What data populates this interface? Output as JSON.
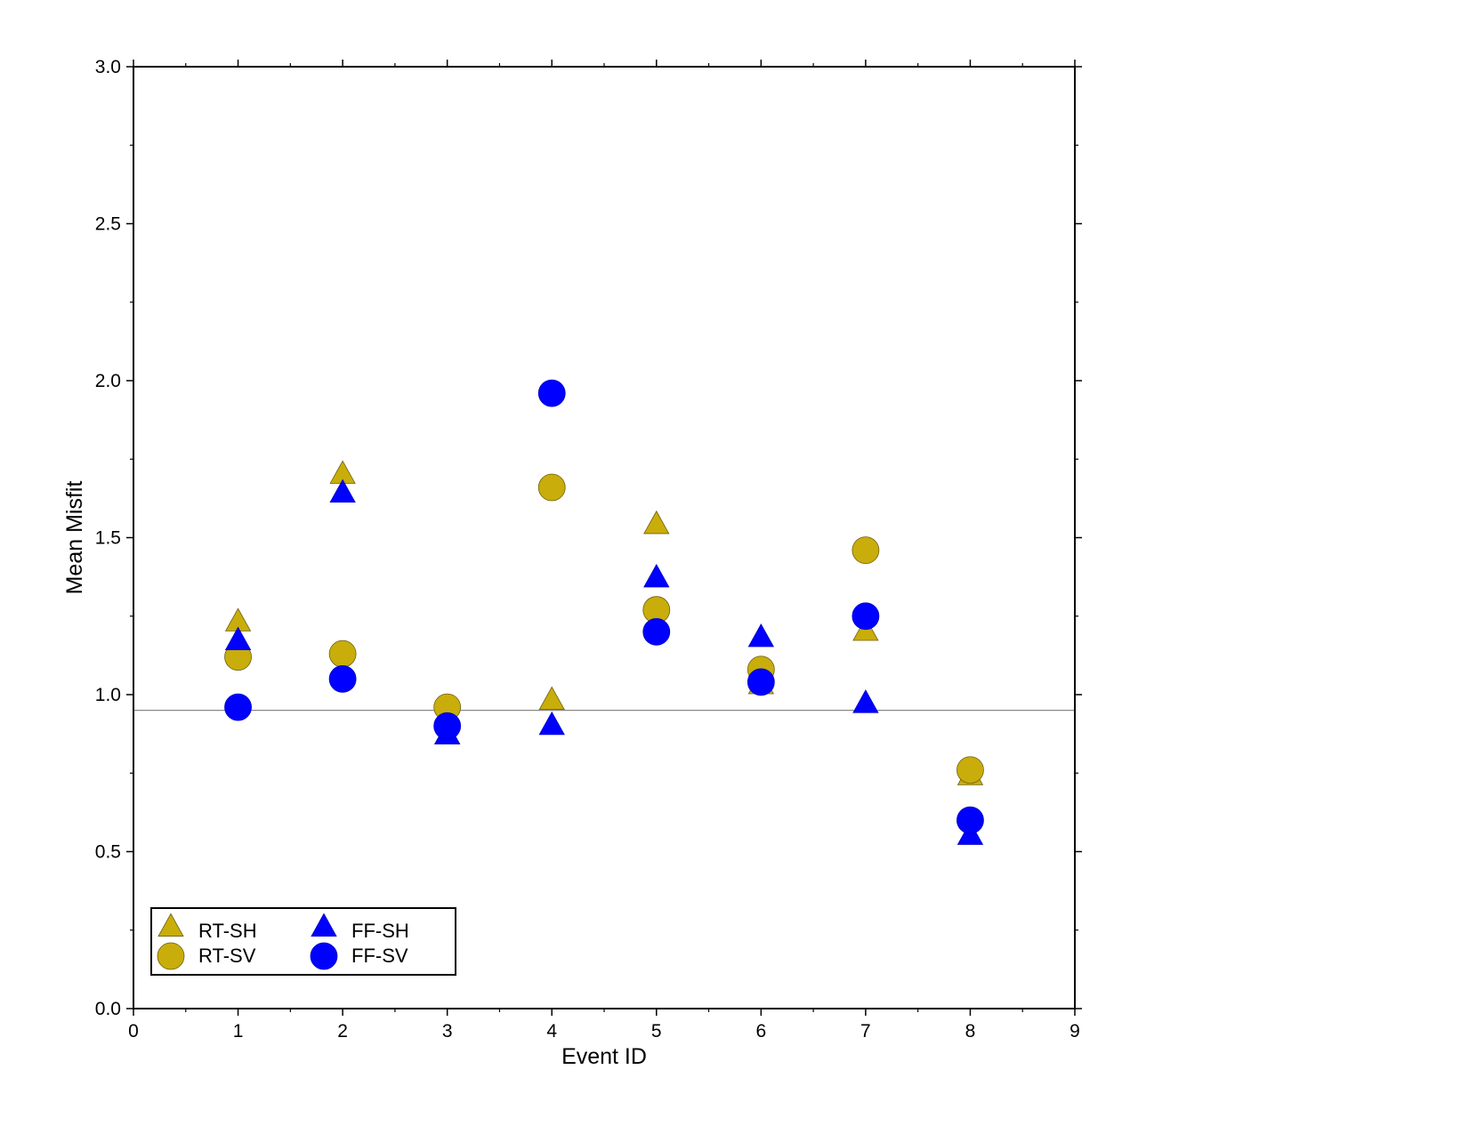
{
  "chart_data": {
    "type": "scatter",
    "xlabel": "Event ID",
    "ylabel": "Mean Misfit",
    "xlim": [
      0,
      9
    ],
    "ylim": [
      0,
      3
    ],
    "xticks": [
      0,
      1,
      2,
      3,
      4,
      5,
      6,
      7,
      8,
      9
    ],
    "yticks": [
      0.0,
      0.5,
      1.0,
      1.5,
      2.0,
      2.5,
      3.0
    ],
    "xtick_labels": [
      "0",
      "1",
      "2",
      "3",
      "4",
      "5",
      "6",
      "7",
      "8",
      "9"
    ],
    "ytick_labels": [
      "0.0",
      "0.5",
      "1.0",
      "1.5",
      "2.0",
      "2.5",
      "3.0"
    ],
    "reference_line_y": 0.95,
    "grid": false,
    "legend_position": "bottom-left",
    "x": [
      1,
      2,
      3,
      4,
      5,
      6,
      7,
      8
    ],
    "series": [
      {
        "name": "RT-SH",
        "marker": "triangle",
        "color": "#c9ad0a",
        "values": [
          1.23,
          1.7,
          0.87,
          0.98,
          1.54,
          1.03,
          1.2,
          0.74
        ]
      },
      {
        "name": "RT-SV",
        "marker": "circle",
        "color": "#c9ad0a",
        "values": [
          1.12,
          1.13,
          0.96,
          1.66,
          1.27,
          1.08,
          1.46,
          0.76
        ]
      },
      {
        "name": "FF-SH",
        "marker": "triangle",
        "color": "#0000ff",
        "values": [
          1.17,
          1.64,
          0.87,
          0.9,
          1.37,
          1.18,
          0.97,
          0.55
        ]
      },
      {
        "name": "FF-SV",
        "marker": "circle",
        "color": "#0000ff",
        "values": [
          0.96,
          1.05,
          0.9,
          1.96,
          1.2,
          1.04,
          1.25,
          0.6
        ]
      }
    ]
  }
}
